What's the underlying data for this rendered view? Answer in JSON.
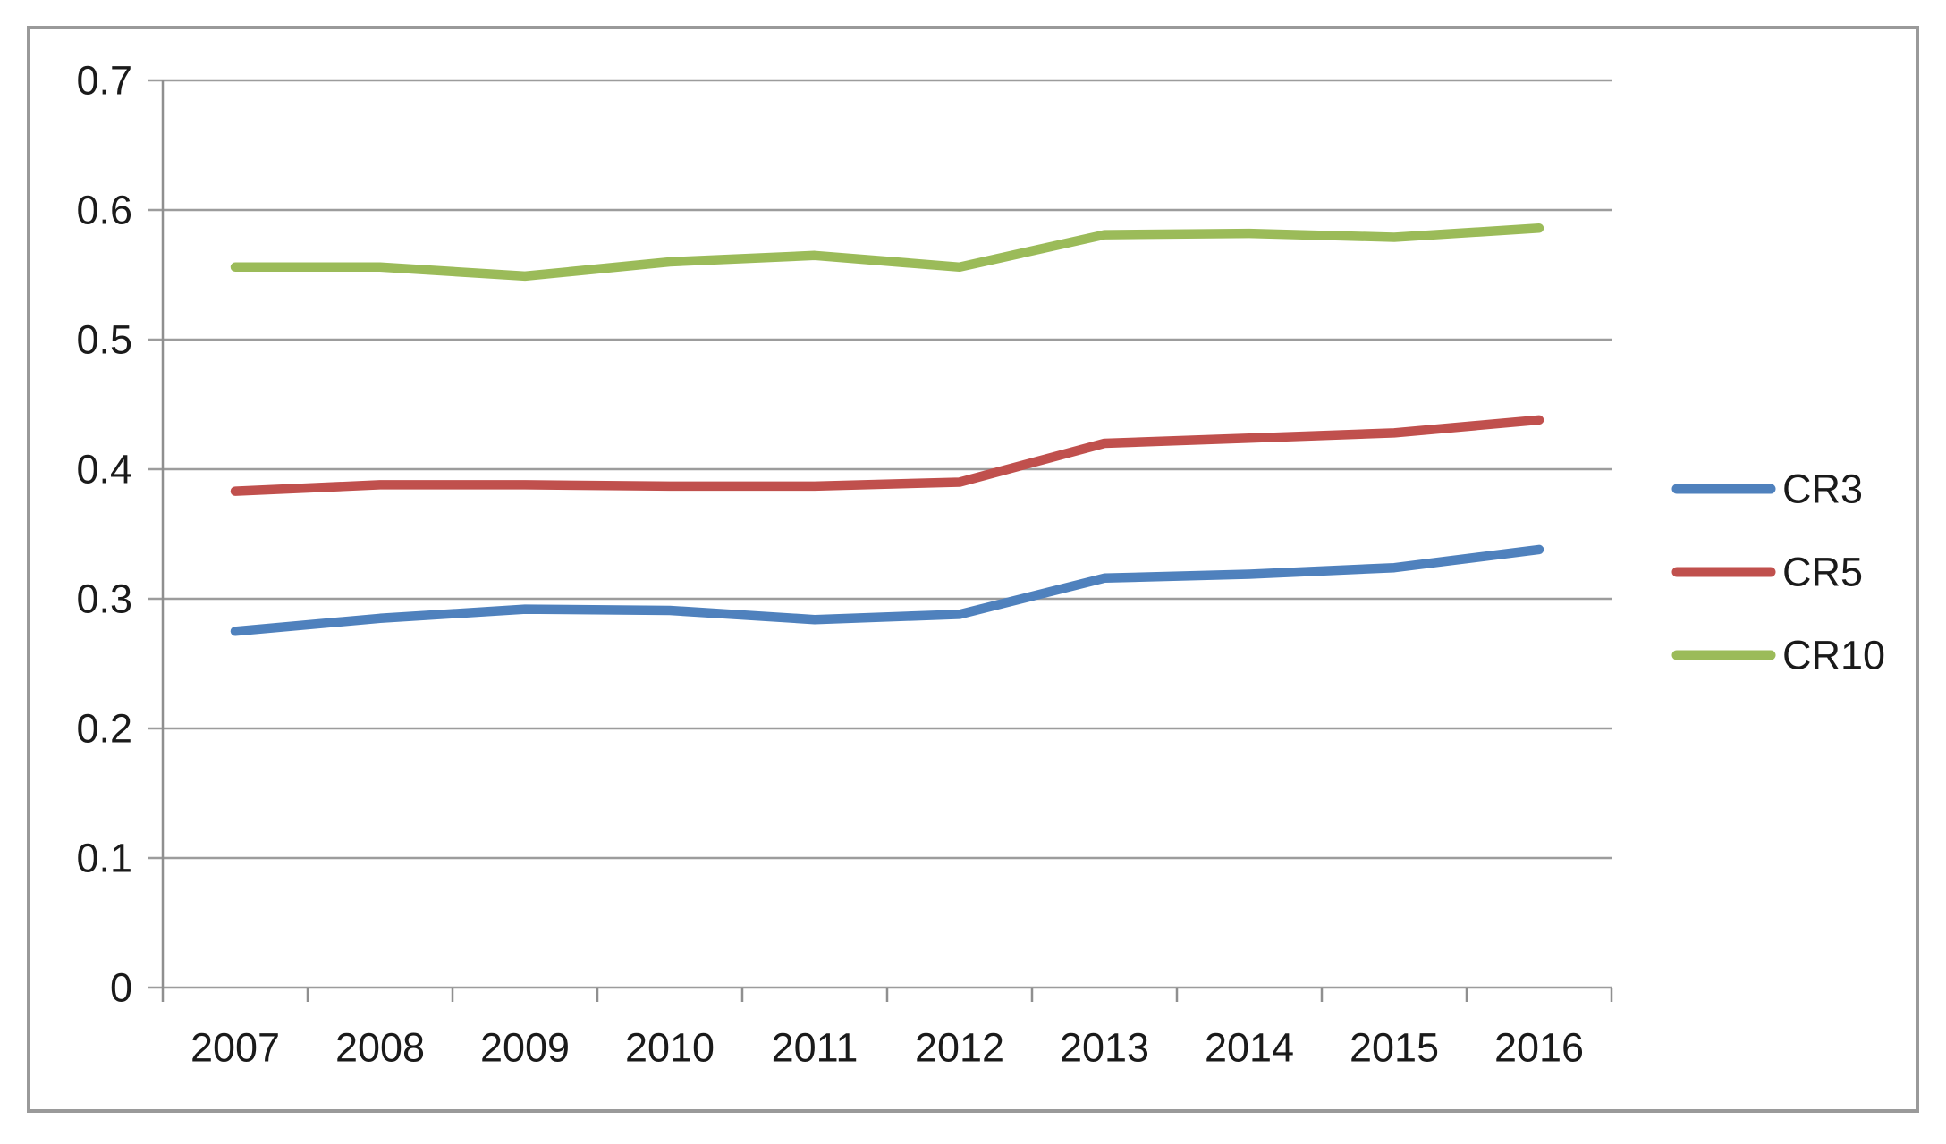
{
  "chart_data": {
    "type": "line",
    "title": "",
    "categories": [
      "2007",
      "2008",
      "2009",
      "2010",
      "2011",
      "2012",
      "2013",
      "2014",
      "2015",
      "2016"
    ],
    "series": [
      {
        "name": "CR3",
        "color": "#4F81BD",
        "values": [
          0.275,
          0.285,
          0.292,
          0.291,
          0.284,
          0.288,
          0.316,
          0.319,
          0.324,
          0.338
        ]
      },
      {
        "name": "CR5",
        "color": "#C0504D",
        "values": [
          0.383,
          0.388,
          0.388,
          0.387,
          0.387,
          0.39,
          0.42,
          0.424,
          0.428,
          0.438
        ]
      },
      {
        "name": "CR10",
        "color": "#9BBB59",
        "values": [
          0.556,
          0.556,
          0.549,
          0.56,
          0.565,
          0.556,
          0.581,
          0.582,
          0.579,
          0.586
        ]
      }
    ],
    "y_ticks": [
      "0.7",
      "0.6",
      "0.5",
      "0.4",
      "0.3",
      "0.2",
      "0.1",
      "0"
    ],
    "ylim": [
      0,
      0.7
    ],
    "grid": true,
    "legend_position": "right",
    "colors": {
      "gridline": "#9c9c9c",
      "axis": "#8f8f8f",
      "frame": "#9a9a9a",
      "text": "#1a1a1a",
      "background": "#ffffff"
    }
  }
}
